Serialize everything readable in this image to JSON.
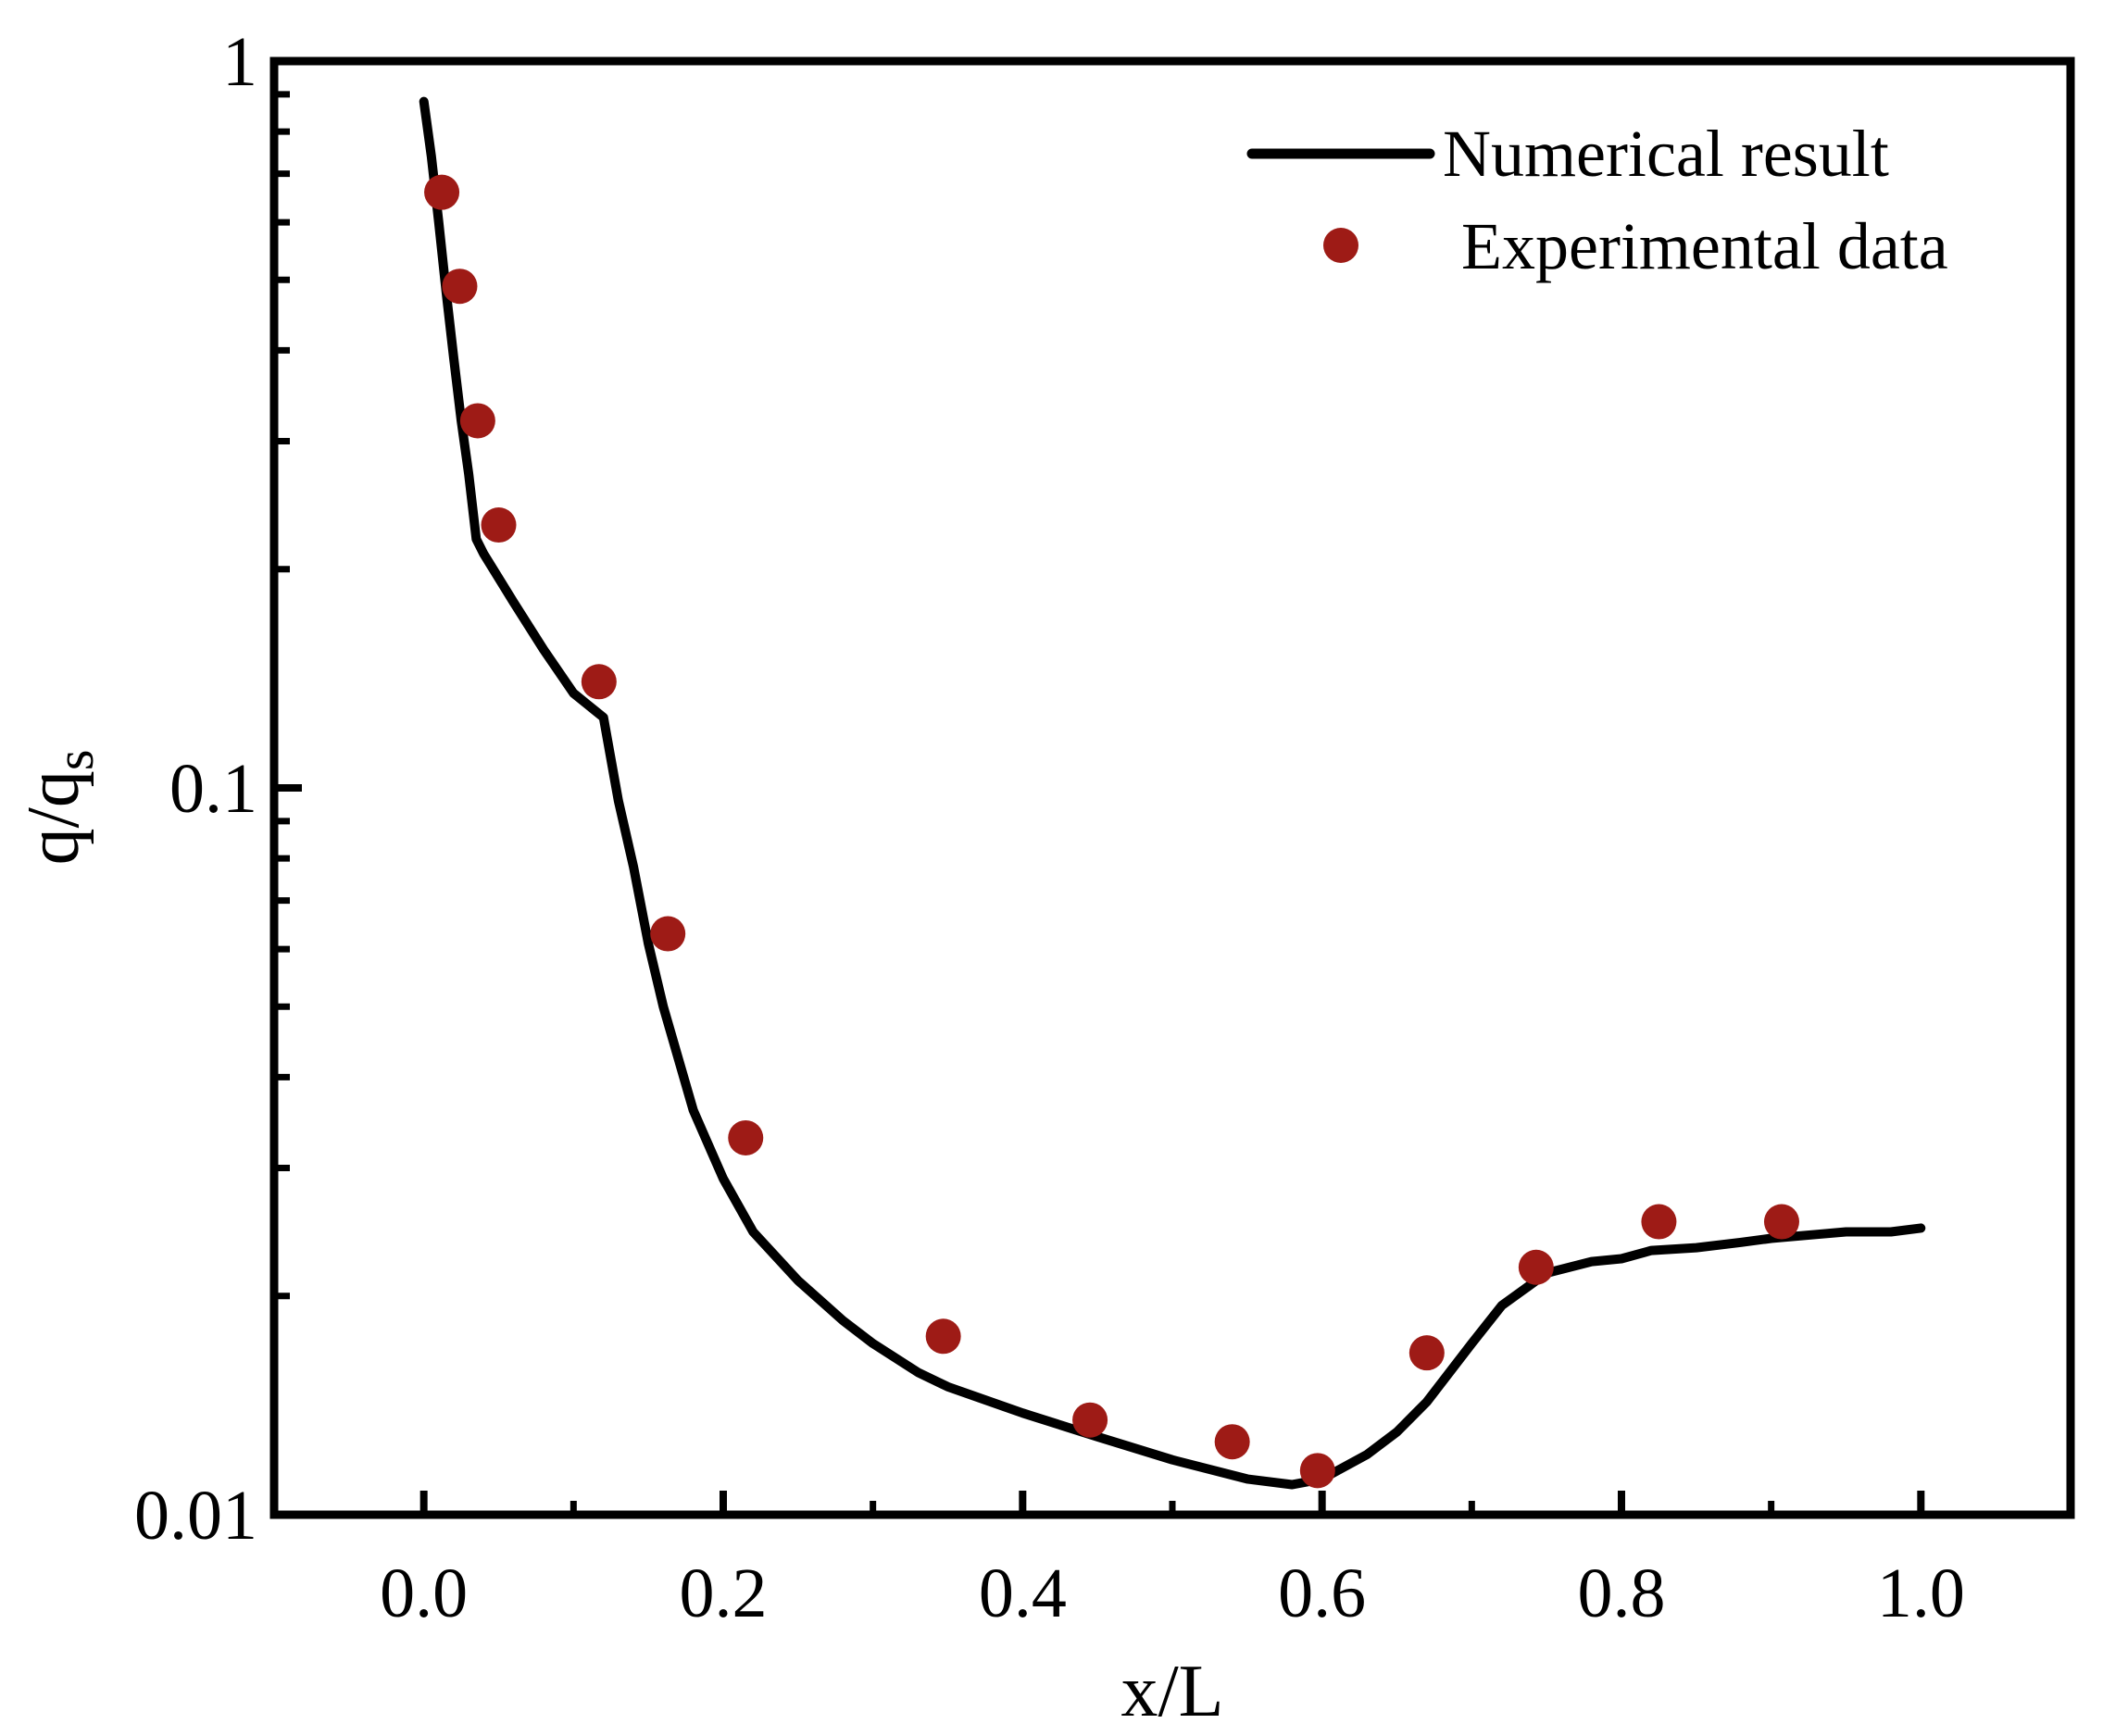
{
  "chart_data": {
    "type": "line",
    "title": "",
    "xlabel": "x/L",
    "ylabel": {
      "main": "q/q",
      "sub": "s"
    },
    "xscale": "linear",
    "yscale": "log",
    "xlim": [
      -0.1,
      1.1
    ],
    "ylim": [
      0.01,
      1
    ],
    "xticks": [
      {
        "value": 0.0,
        "label": "0.0"
      },
      {
        "value": 0.2,
        "label": "0.2"
      },
      {
        "value": 0.4,
        "label": "0.4"
      },
      {
        "value": 0.6,
        "label": "0.6"
      },
      {
        "value": 0.8,
        "label": "0.8"
      },
      {
        "value": 1.0,
        "label": "1.0"
      }
    ],
    "yticks": [
      {
        "value": 0.01,
        "label": "0.01"
      },
      {
        "value": 0.1,
        "label": "0.1"
      },
      {
        "value": 1,
        "label": "1"
      }
    ],
    "legend_position": "top-right",
    "series": [
      {
        "name": "Numerical result",
        "kind": "line",
        "color": "#000000",
        "x": [
          0.0,
          0.005,
          0.01,
          0.015,
          0.02,
          0.025,
          0.03,
          0.035,
          0.04,
          0.06,
          0.08,
          0.1,
          0.12,
          0.13,
          0.14,
          0.15,
          0.16,
          0.18,
          0.2,
          0.22,
          0.25,
          0.28,
          0.3,
          0.33,
          0.35,
          0.4,
          0.45,
          0.5,
          0.55,
          0.58,
          0.6,
          0.63,
          0.65,
          0.67,
          0.7,
          0.72,
          0.75,
          0.78,
          0.8,
          0.82,
          0.85,
          0.88,
          0.9,
          0.93,
          0.95,
          0.98,
          1.0
        ],
        "y": [
          0.88,
          0.74,
          0.6,
          0.48,
          0.39,
          0.32,
          0.27,
          0.22,
          0.21,
          0.18,
          0.155,
          0.135,
          0.125,
          0.096,
          0.078,
          0.061,
          0.05,
          0.036,
          0.029,
          0.0245,
          0.021,
          0.0185,
          0.0172,
          0.0157,
          0.015,
          0.0138,
          0.0128,
          0.0119,
          0.0112,
          0.011,
          0.0112,
          0.0121,
          0.013,
          0.0143,
          0.0172,
          0.0194,
          0.0215,
          0.0223,
          0.0225,
          0.0231,
          0.0233,
          0.0237,
          0.024,
          0.0243,
          0.0245,
          0.0245,
          0.0248
        ]
      },
      {
        "name": "Experimental data",
        "kind": "scatter",
        "color": "#9e1b16",
        "x": [
          0.012,
          0.024,
          0.036,
          0.05,
          0.117,
          0.163,
          0.215,
          0.347,
          0.445,
          0.54,
          0.597,
          0.67,
          0.743,
          0.825,
          0.907
        ],
        "y": [
          0.66,
          0.49,
          0.32,
          0.23,
          0.14,
          0.063,
          0.033,
          0.0176,
          0.0135,
          0.0126,
          0.0115,
          0.0167,
          0.0219,
          0.0253,
          0.0253
        ]
      }
    ]
  }
}
